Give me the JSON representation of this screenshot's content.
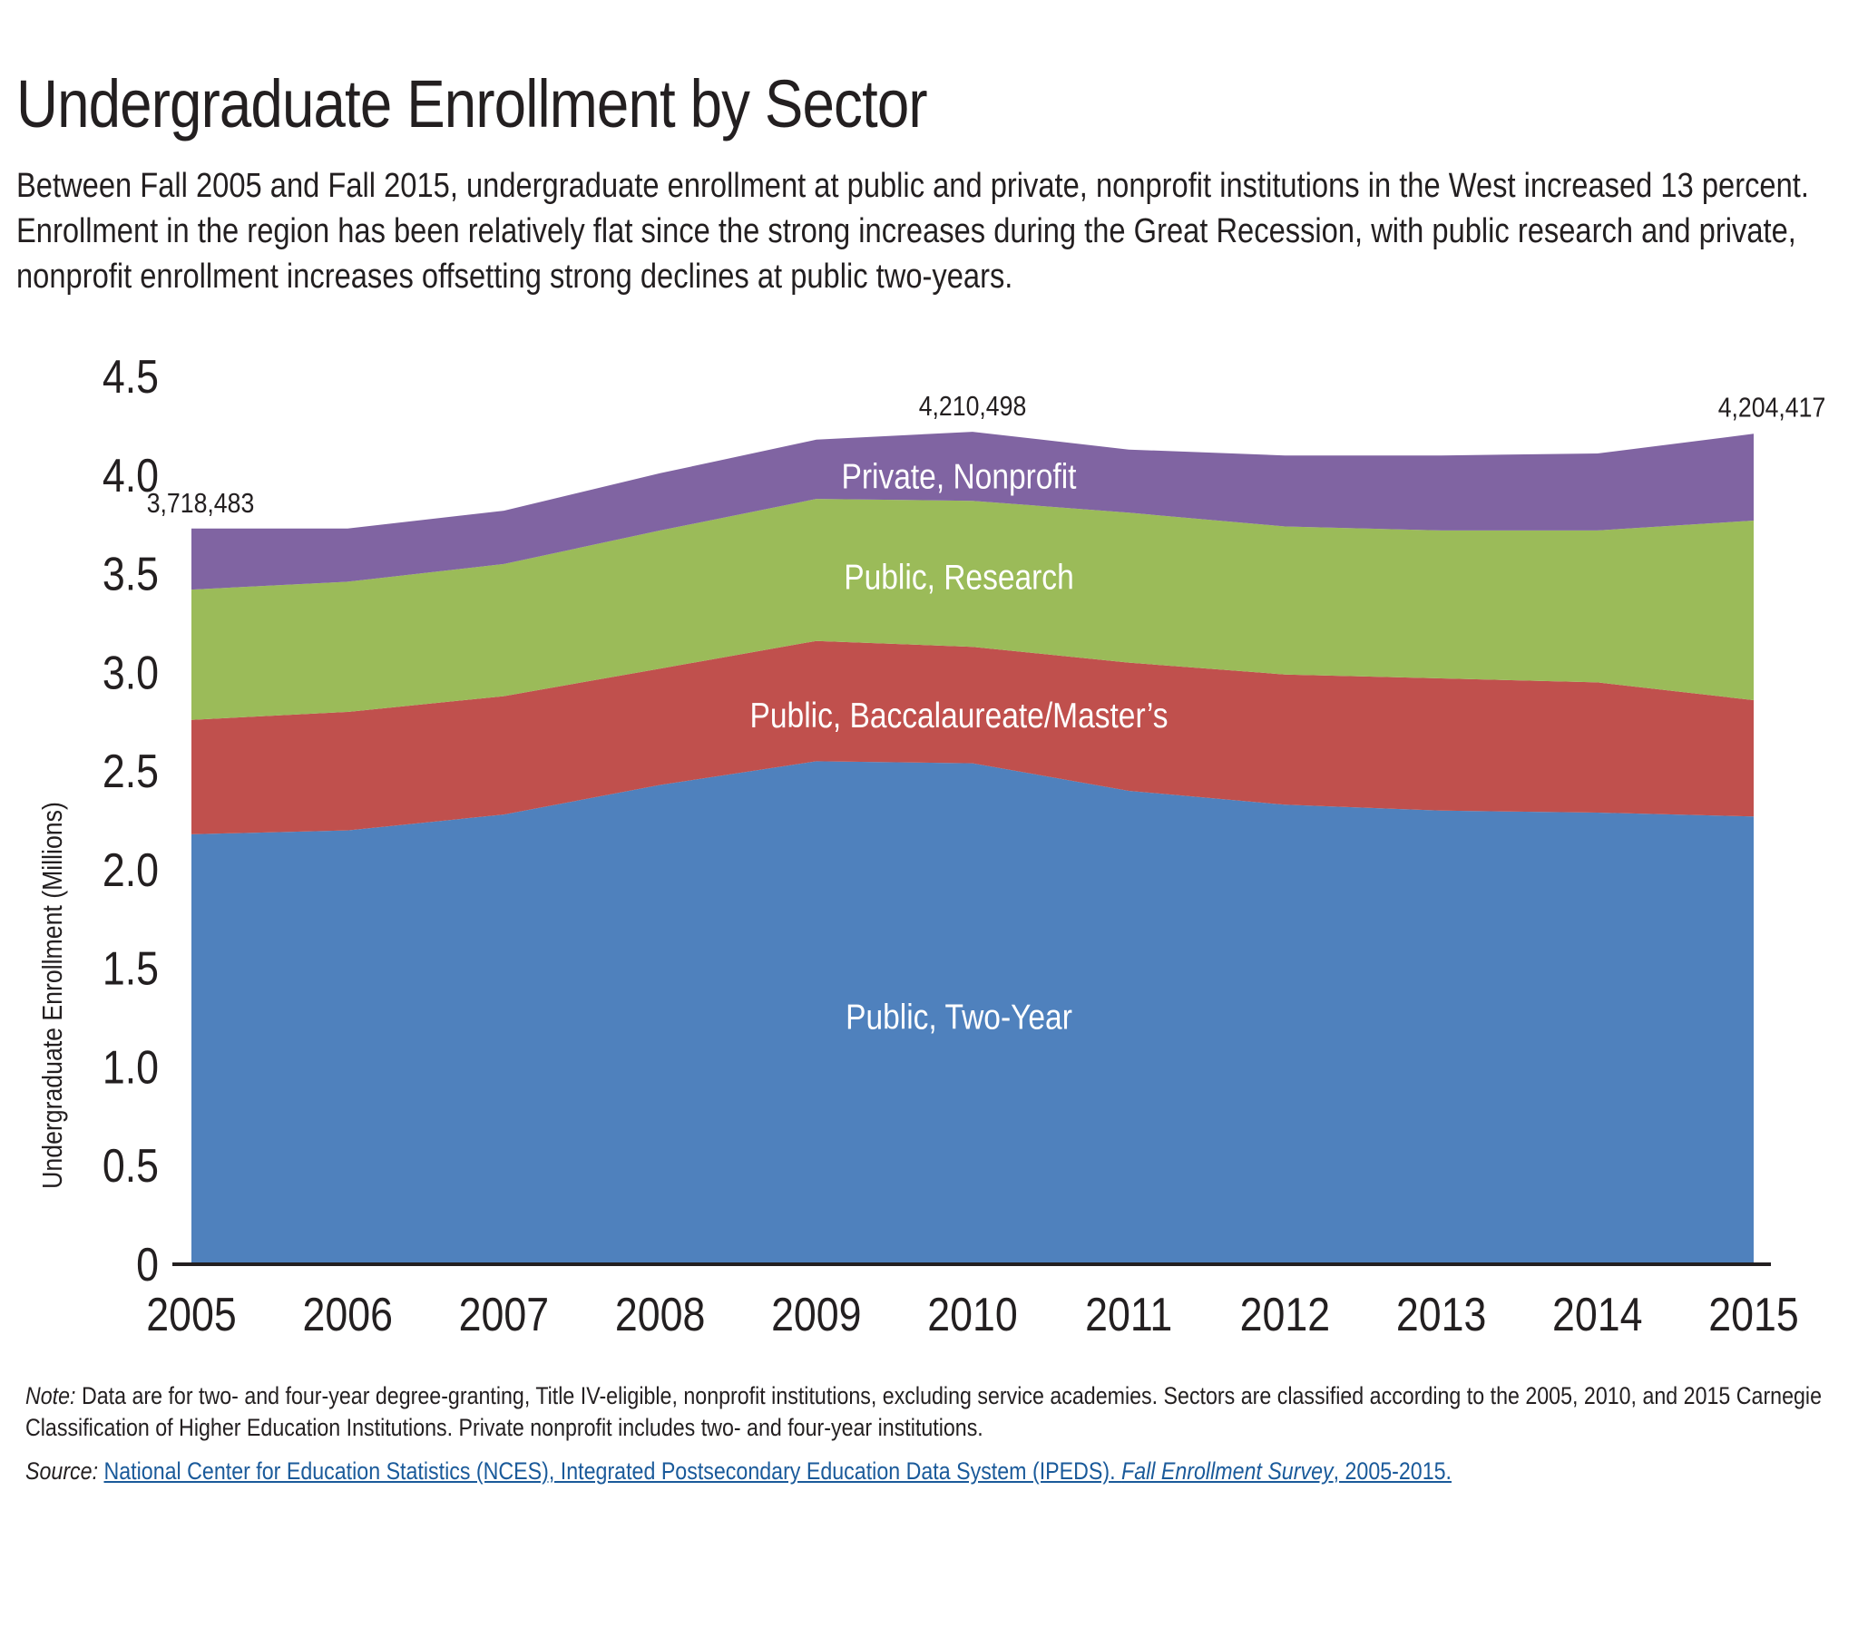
{
  "header": {
    "title": "Undergraduate Enrollment by Sector",
    "subtitle": "Between Fall 2005 and Fall 2015, undergraduate enrollment at public and private, nonprofit institutions in the West increased 13 percent. Enrollment in the region has been relatively flat since the strong increases during the Great Recession, with public research and private, nonprofit enrollment increases offsetting strong declines at public two-years."
  },
  "footer": {
    "note_label": "Note:",
    "note_text": " Data are for two- and four-year degree-granting, Title IV-eligible, nonprofit institutions, excluding service academies. Sectors are classified according to the 2005, 2010, and 2015 Carnegie Classification of Higher Education Institutions. Private nonprofit includes two- and four-year institutions.",
    "source_label": "Source:",
    "source_link_part1": "National Center for Education Statistics (NCES), Integrated Postsecondary Education Data System (IPEDS). ",
    "source_link_italic": "Fall Enrollment Survey",
    "source_link_part2": ", 2005-2015."
  },
  "colors": {
    "two_year": "#4f81bd",
    "bacc_masters": "#c0504d",
    "research": "#9bbb59",
    "private_nonprofit": "#8064a2",
    "axis": "#231f20",
    "link": "#1a5a9a"
  },
  "chart_data": {
    "type": "area",
    "stacked": true,
    "title": "Undergraduate Enrollment by Sector",
    "xlabel": "",
    "ylabel": "Undergraduate Enrollment (Millions)",
    "x": [
      2005,
      2006,
      2007,
      2008,
      2009,
      2010,
      2011,
      2012,
      2013,
      2014,
      2015
    ],
    "x_tick_labels": [
      "2005",
      "2006",
      "2007",
      "2008",
      "2009",
      "2010",
      "2011",
      "2012",
      "2013",
      "2014",
      "2015"
    ],
    "ylim": [
      0,
      4.5
    ],
    "y_ticks": [
      0,
      0.5,
      1.0,
      1.5,
      2.0,
      2.5,
      3.0,
      3.5,
      4.0,
      4.5
    ],
    "y_tick_labels": [
      "0",
      "0.5",
      "1.0",
      "1.5",
      "2.0",
      "2.5",
      "3.0",
      "3.5",
      "4.0",
      "4.5"
    ],
    "grid": false,
    "legend": "inline-labels",
    "series": [
      {
        "name": "Public, Two-Year",
        "color": "#4f81bd",
        "label_at_year": 2010,
        "label_at_value": 1.23,
        "values": [
          2.17,
          2.19,
          2.27,
          2.42,
          2.54,
          2.53,
          2.39,
          2.32,
          2.29,
          2.28,
          2.26
        ]
      },
      {
        "name": "Public, Baccalaureate/Master’s",
        "color": "#c0504d",
        "label_at_year": 2010,
        "label_at_value": 2.76,
        "values": [
          0.58,
          0.6,
          0.6,
          0.59,
          0.61,
          0.59,
          0.65,
          0.66,
          0.67,
          0.66,
          0.59
        ]
      },
      {
        "name": "Public, Research",
        "color": "#9bbb59",
        "label_at_year": 2010,
        "label_at_value": 3.46,
        "values": [
          0.66,
          0.66,
          0.67,
          0.7,
          0.72,
          0.74,
          0.76,
          0.75,
          0.75,
          0.77,
          0.91
        ]
      },
      {
        "name": "Private, Nonprofit",
        "color": "#8064a2",
        "label_at_year": 2010,
        "label_at_value": 3.97,
        "values": [
          0.31,
          0.27,
          0.27,
          0.29,
          0.3,
          0.35,
          0.32,
          0.36,
          0.38,
          0.39,
          0.44
        ]
      }
    ],
    "annotations": [
      {
        "text": "3,718,483",
        "year": 2005,
        "value": 3.718483
      },
      {
        "text": "4,210,498",
        "year": 2010,
        "value": 4.210498
      },
      {
        "text": "4,204,417",
        "year": 2015,
        "value": 4.204417
      }
    ]
  }
}
